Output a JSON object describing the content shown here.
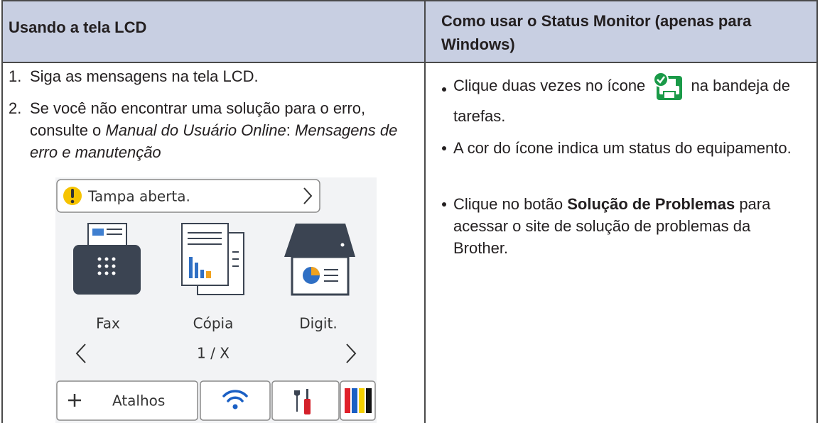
{
  "table": {
    "headers": [
      "Usando a tela LCD",
      "Como usar o Status Monitor (apenas para Windows)"
    ],
    "left": {
      "steps": [
        {
          "number": "1.",
          "text": "Siga as mensagens na tela LCD."
        },
        {
          "number": "2.",
          "parts": [
            "Se você não encontrar uma solução para o erro, consulte o ",
            "Manual do Usuário Online",
            ": ",
            "Mensagens de erro e manutenção"
          ]
        }
      ],
      "lcd": {
        "alert": "Tampa aberta.",
        "apps": [
          "Fax",
          "Cópia",
          "Digit."
        ],
        "page": "1 / X",
        "shortcuts": "Atalhos"
      }
    },
    "right": {
      "bullets": [
        {
          "parts": [
            "Clique duas vezes no ícone",
            "na bandeja de tarefas."
          ]
        },
        {
          "parts": [
            "A cor do ícone indica um status do equipamento."
          ]
        },
        {
          "parts": [
            "Clique no botão ",
            "Solução de Problemas",
            " para acessar o site de solução de problemas da Brother."
          ]
        }
      ]
    }
  }
}
